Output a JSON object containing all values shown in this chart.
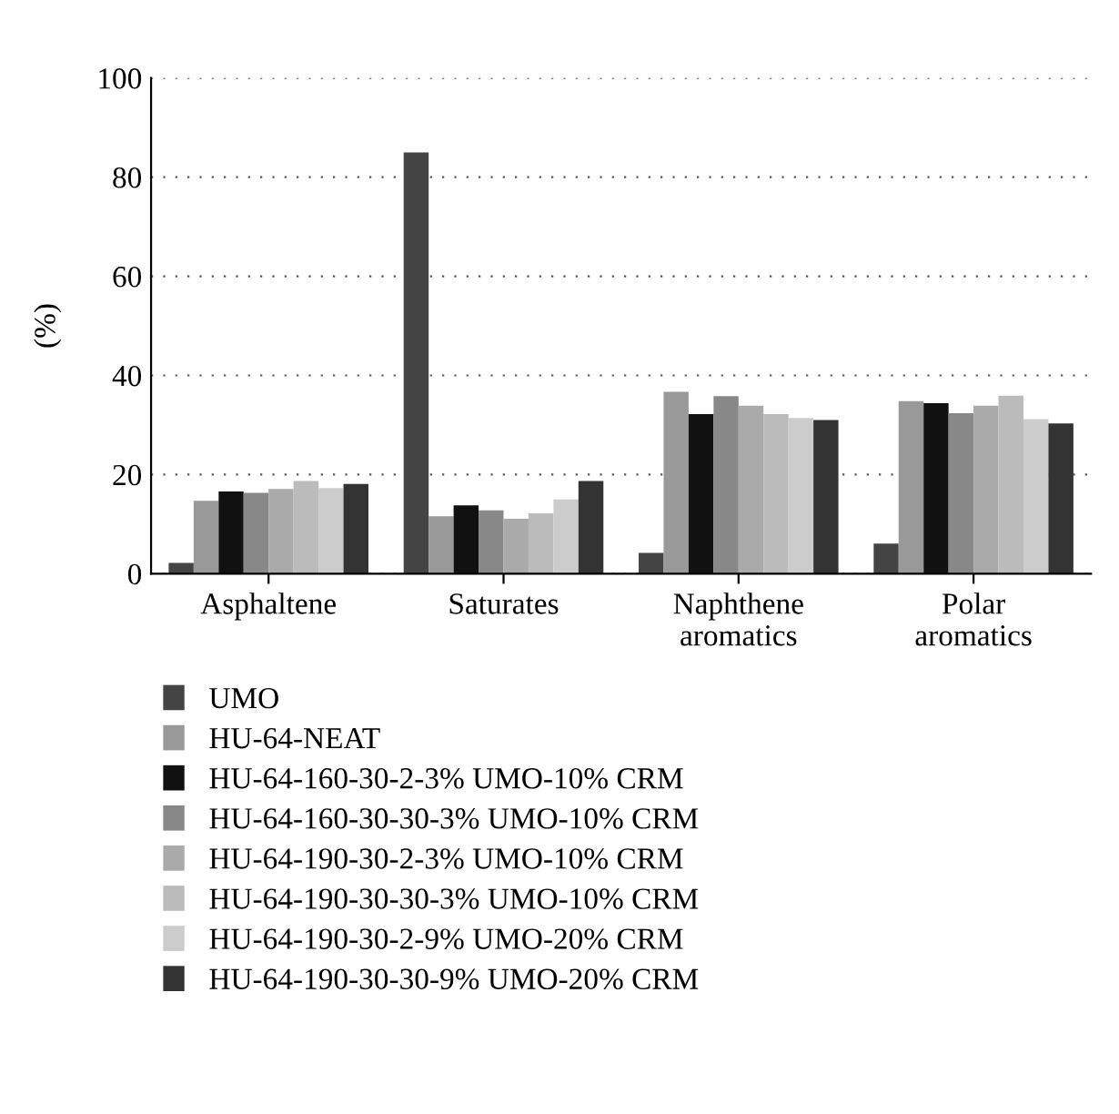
{
  "chart_data": {
    "type": "bar",
    "ylabel": "(%)",
    "categories": [
      "Asphaltene",
      "Saturates",
      "Naphthene\naromatics",
      "Polar\naromatics"
    ],
    "series": [
      {
        "name": "UMO",
        "color": "#444444",
        "values": [
          2.2,
          85,
          4.2,
          6.1
        ]
      },
      {
        "name": "HU-64-NEAT",
        "color": "#999999",
        "values": [
          14.7,
          11.6,
          36.7,
          34.8
        ]
      },
      {
        "name": "HU-64-160-30-2-3% UMO-10% CRM",
        "color": "#111111",
        "values": [
          16.6,
          13.8,
          32.2,
          34.4
        ]
      },
      {
        "name": "HU-64-160-30-30-3% UMO-10% CRM",
        "color": "#888888",
        "values": [
          16.3,
          12.8,
          35.8,
          32.4
        ]
      },
      {
        "name": "HU-64-190-30-2-3% UMO-10% CRM",
        "color": "#aaaaaa",
        "values": [
          17.1,
          11.1,
          33.9,
          33.9
        ]
      },
      {
        "name": "HU-64-190-30-30-3% UMO-10% CRM",
        "color": "#bbbbbb",
        "values": [
          18.7,
          12.2,
          32.2,
          35.9
        ]
      },
      {
        "name": "HU-64-190-30-2-9% UMO-20% CRM",
        "color": "#cccccc",
        "values": [
          17.3,
          15.0,
          31.4,
          31.2
        ]
      },
      {
        "name": "HU-64-190-30-30-9% UMO-20% CRM",
        "color": "#333333",
        "values": [
          18.1,
          18.7,
          31.0,
          30.3
        ]
      }
    ],
    "ylim": [
      0,
      100
    ],
    "yticks": [
      0,
      20,
      40,
      60,
      80,
      100
    ],
    "grid": "y",
    "legend": "bottom"
  }
}
